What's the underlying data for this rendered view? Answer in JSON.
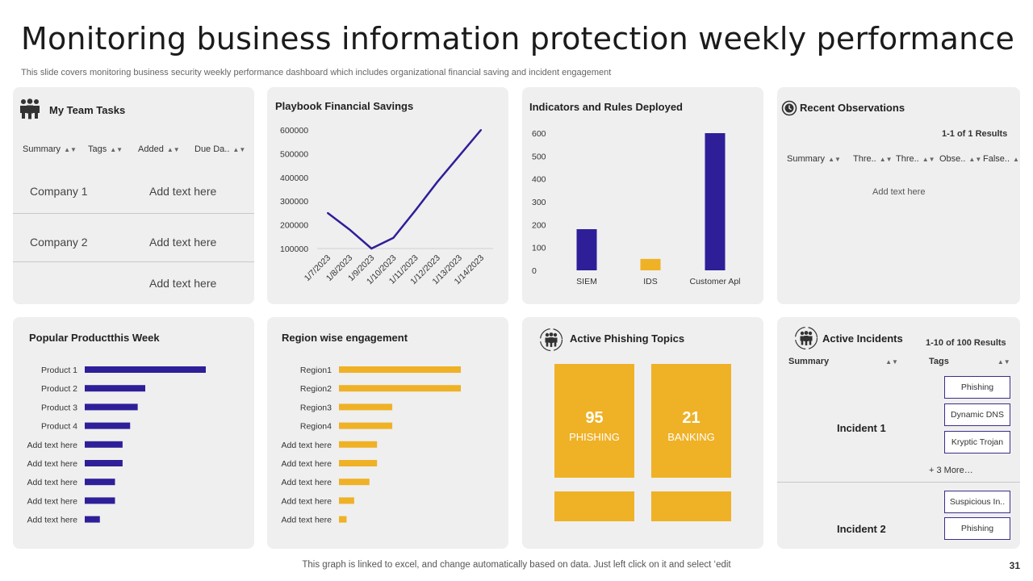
{
  "header": {
    "title": "Monitoring business information protection weekly performance",
    "subtitle": "This slide covers monitoring business security weekly performance dashboard which includes organizational financial saving and incident engagement"
  },
  "footer": {
    "note": "This graph is linked to excel, and change automatically based on data. Just left click on it and select ‘edit",
    "page_number": "31"
  },
  "colors": {
    "purple": "#2e1f99",
    "yellow": "#efb126",
    "panel": "#efefef"
  },
  "team_tasks": {
    "title": "My Team Tasks",
    "columns": [
      "Summary",
      "Tags",
      "Added",
      "Due Da.."
    ],
    "rows": [
      {
        "name": "Company  1",
        "note": "Add text here"
      },
      {
        "name": "Company  2",
        "note": "Add text here"
      },
      {
        "name": "",
        "note": "Add text here"
      }
    ]
  },
  "savings": {
    "title": "Playbook Financial Savings"
  },
  "indicators": {
    "title": "Indicators and Rules Deployed"
  },
  "observations": {
    "title": "Recent Observations",
    "results": "1-1 of 1 Results",
    "columns": [
      "Summary",
      "Thre..",
      "Thre..",
      "Obse..",
      "False.."
    ],
    "placeholder": "Add text here"
  },
  "products": {
    "title": "Popular Productthis Week"
  },
  "regions": {
    "title": "Region wise engagement"
  },
  "phishing": {
    "title": "Active Phishing Topics",
    "tiles": [
      {
        "value": "95",
        "label": "PHISHING"
      },
      {
        "value": "21",
        "label": "BANKING"
      }
    ]
  },
  "incidents": {
    "title": "Active Incidents",
    "results": "1-10 of 100 Results",
    "columns": [
      "Summary",
      "Tags"
    ],
    "incident1": {
      "name": "Incident 1",
      "tags": [
        "Phishing",
        "Dynamic DNS",
        "Kryptic Trojan"
      ],
      "more": "+ 3 More…"
    },
    "incident2": {
      "name": "Incident 2",
      "tags": [
        "Suspicious In..",
        "Phishing"
      ]
    }
  },
  "chart_data": [
    {
      "type": "line",
      "title": "Playbook Financial Savings",
      "x": [
        "1/7/2023",
        "1/8/2023",
        "1/9/2023",
        "1/10/2023",
        "1/11/2023",
        "1/12/2023",
        "1/13/2023",
        "1/14/2023"
      ],
      "values": [
        250000,
        180000,
        100000,
        145000,
        260000,
        380000,
        490000,
        600000
      ],
      "ylim": [
        100000,
        600000
      ],
      "yticks": [
        "600000",
        "500000",
        "400000",
        "300000",
        "200000",
        "100000"
      ],
      "color": "#2e1f99"
    },
    {
      "type": "bar",
      "title": "Indicators and Rules Deployed",
      "categories": [
        "SIEM",
        "IDS",
        "Customer Apl"
      ],
      "values": [
        180,
        50,
        600
      ],
      "colors": [
        "#2e1f99",
        "#efb126",
        "#2e1f99"
      ],
      "ylim": [
        0,
        600
      ],
      "yticks": [
        "600",
        "500",
        "400",
        "300",
        "200",
        "100",
        "0"
      ]
    },
    {
      "type": "bar",
      "orientation": "horizontal",
      "title": "Popular Productthis Week",
      "categories": [
        "Product 1",
        "Product 2",
        "Product 3",
        "Product 4",
        "Add text here",
        "Add text here",
        "Add text here",
        "Add text here",
        "Add text here"
      ],
      "values": [
        16,
        8,
        7,
        6,
        5,
        5,
        4,
        4,
        2
      ],
      "xmax": 16,
      "color": "#2e1f99"
    },
    {
      "type": "bar",
      "orientation": "horizontal",
      "title": "Region wise engagement",
      "categories": [
        "Region1",
        "Region2",
        "Region3",
        "Region4",
        "Add text here",
        "Add text here",
        "Add text here",
        "Add text here",
        "Add text here"
      ],
      "values": [
        16,
        16,
        7,
        7,
        5,
        5,
        4,
        2,
        1
      ],
      "xmax": 16,
      "color": "#efb126"
    }
  ]
}
